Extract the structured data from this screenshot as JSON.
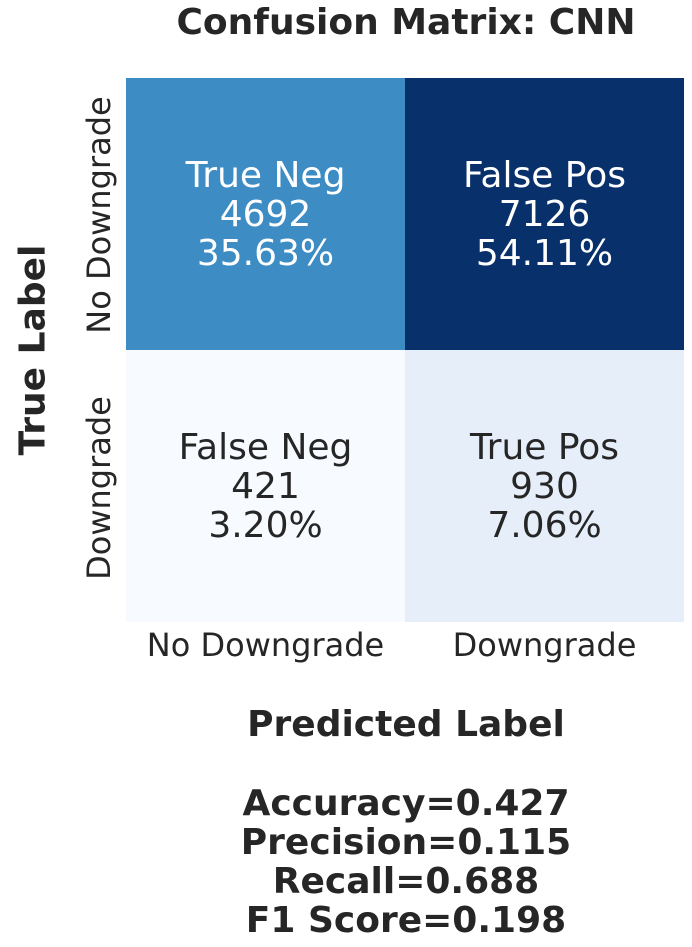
{
  "chart_data": {
    "type": "heatmap",
    "title": "Confusion Matrix: CNN",
    "xlabel": "Predicted Label",
    "ylabel": "True Label",
    "x_categories": [
      "No Downgrade",
      "Downgrade"
    ],
    "y_categories": [
      "No Downgrade",
      "Downgrade"
    ],
    "cells": [
      {
        "row": 0,
        "col": 0,
        "name": "True Neg",
        "count": "4692",
        "percent": "35.63%",
        "value": 4692,
        "color": "#3d8dc4",
        "text_color": "#ffffff"
      },
      {
        "row": 0,
        "col": 1,
        "name": "False Pos",
        "count": "7126",
        "percent": "54.11%",
        "value": 7126,
        "color": "#08306b",
        "text_color": "#ffffff"
      },
      {
        "row": 1,
        "col": 0,
        "name": "False Neg",
        "count": "421",
        "percent": "3.20%",
        "value": 421,
        "color": "#f7fbff",
        "text_color": "#262626"
      },
      {
        "row": 1,
        "col": 1,
        "name": "True Pos",
        "count": "930",
        "percent": "7.06%",
        "value": 930,
        "color": "#e6eff9",
        "text_color": "#262626"
      }
    ],
    "colormap": "Blues",
    "colorbar": false,
    "metrics": [
      "Accuracy=0.427",
      "Precision=0.115",
      "Recall=0.688",
      "F1 Score=0.198"
    ]
  }
}
